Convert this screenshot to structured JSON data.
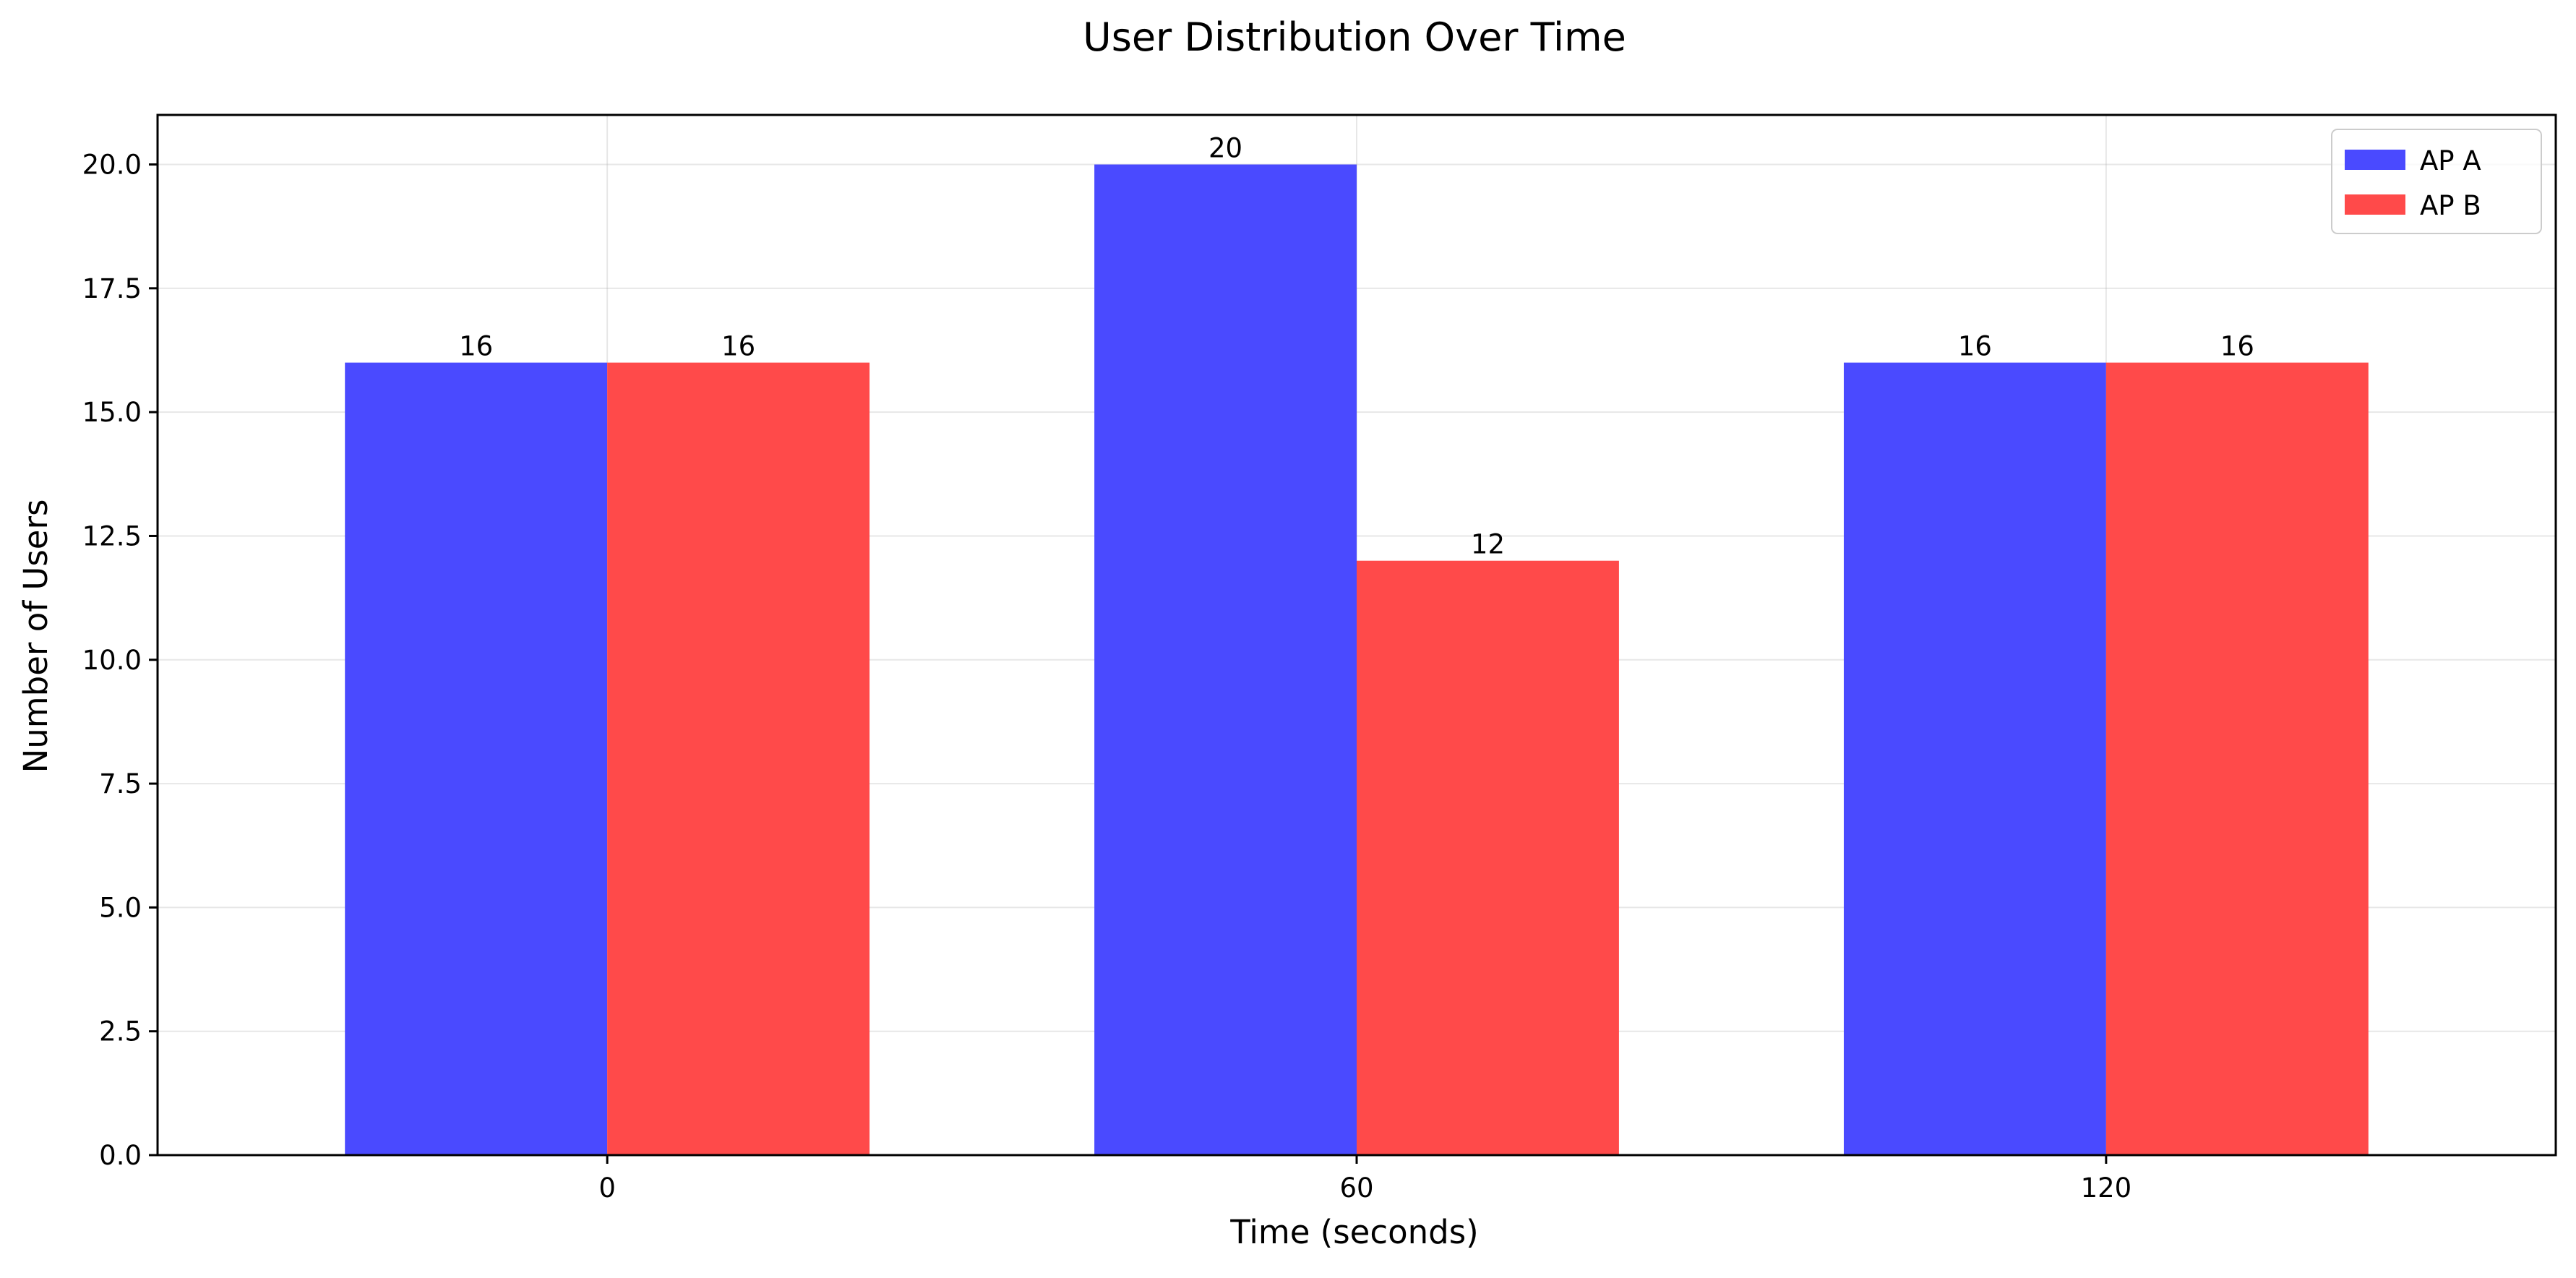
{
  "chart_data": {
    "type": "bar",
    "title": "User Distribution Over Time",
    "xlabel": "Time (seconds)",
    "ylabel": "Number of Users",
    "categories": [
      "0",
      "60",
      "120"
    ],
    "series": [
      {
        "name": "AP A",
        "values": [
          16,
          20,
          16
        ],
        "color": "#4a4aff"
      },
      {
        "name": "AP B",
        "values": [
          16,
          12,
          16
        ],
        "color": "#ff4a4a"
      }
    ],
    "ylim": [
      0,
      21
    ],
    "yticks": [
      "0.0",
      "2.5",
      "5.0",
      "7.5",
      "10.0",
      "12.5",
      "15.0",
      "17.5",
      "20.0"
    ],
    "grid": true,
    "legend_position": "top-right"
  }
}
